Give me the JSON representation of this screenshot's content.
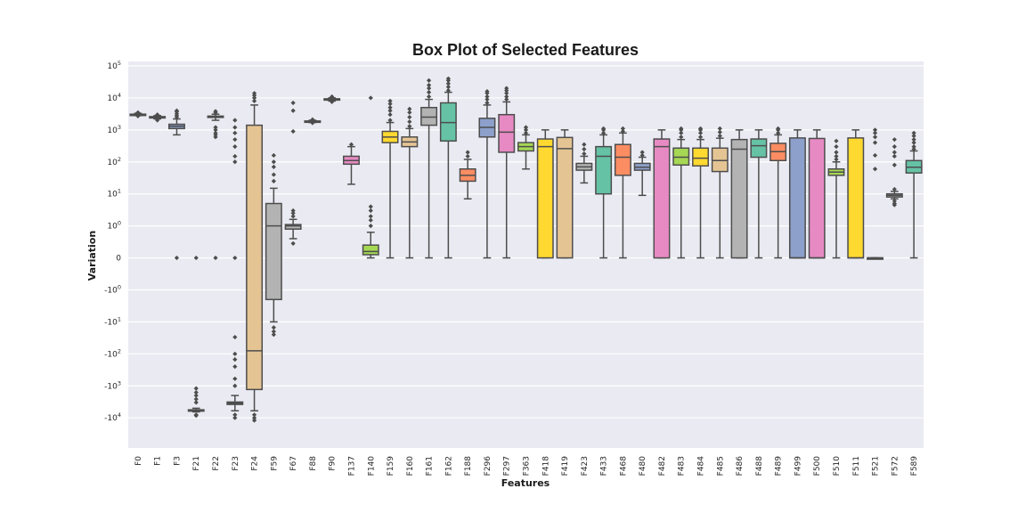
{
  "chart_data": {
    "type": "box",
    "title": "Box Plot of Selected Features",
    "xlabel": "Features",
    "ylabel": "Variation",
    "yscale": "symlog",
    "ylim": [
      -20000,
      100000
    ],
    "grid": true,
    "y_ticks": [
      {
        "value": 100000,
        "label": "10^5"
      },
      {
        "value": 10000,
        "label": "10^4"
      },
      {
        "value": 1000,
        "label": "10^3"
      },
      {
        "value": 100,
        "label": "10^2"
      },
      {
        "value": 10,
        "label": "10^1"
      },
      {
        "value": 1,
        "label": "10^0"
      },
      {
        "value": 0,
        "label": "0"
      },
      {
        "value": -1,
        "label": "-10^0"
      },
      {
        "value": -10,
        "label": "-10^1"
      },
      {
        "value": -100,
        "label": "-10^2"
      },
      {
        "value": -1000,
        "label": "-10^3"
      },
      {
        "value": -10000,
        "label": "-10^4"
      }
    ],
    "boxes": [
      {
        "name": "F0",
        "color": "#8c8c8c",
        "whislo": 2800,
        "q1": 2900,
        "med": 3000,
        "q3": 3100,
        "whishi": 3300,
        "outliers": [
          2700,
          3400,
          3500
        ]
      },
      {
        "name": "F1",
        "color": "#8c8c8c",
        "whislo": 2200,
        "q1": 2400,
        "med": 2500,
        "q3": 2600,
        "whishi": 2800,
        "outliers": [
          2000,
          3000
        ]
      },
      {
        "name": "F3",
        "color": "#8da0cb",
        "whislo": 700,
        "q1": 1100,
        "med": 1300,
        "q3": 1500,
        "whishi": 2200,
        "outliers": [
          0,
          2500,
          2800,
          3200,
          3700,
          4000
        ]
      },
      {
        "name": "F21",
        "color": "#8c8c8c",
        "whislo": -6500,
        "q1": -6000,
        "med": -5800,
        "q3": -5600,
        "whishi": -5000,
        "outliers": [
          0,
          -1200,
          -1600,
          -2000,
          -2600,
          -3300,
          -8000,
          -8500
        ]
      },
      {
        "name": "F22",
        "color": "#8c8c8c",
        "whislo": 2000,
        "q1": 2500,
        "med": 2600,
        "q3": 2700,
        "whishi": 3100,
        "outliers": [
          0,
          600,
          700,
          800,
          1000,
          1200,
          3500,
          3800
        ]
      },
      {
        "name": "F23",
        "color": "#8c8c8c",
        "whislo": -6000,
        "q1": -3800,
        "med": -3500,
        "q3": -3200,
        "whishi": -2000,
        "outliers": [
          0,
          100,
          150,
          300,
          500,
          800,
          1200,
          2000,
          -30,
          -100,
          -150,
          -250,
          -600,
          -1000,
          -8000,
          -10000
        ]
      },
      {
        "name": "F24",
        "color": "#e5c494",
        "whislo": -6000,
        "q1": -1300,
        "med": -80,
        "q3": 1400,
        "whishi": 6000,
        "outliers": [
          8000,
          10000,
          12000,
          14000,
          -8000,
          -10000,
          -12000
        ]
      },
      {
        "name": "F59",
        "color": "#b3b3b3",
        "whislo": -10,
        "q1": -2,
        "med": 1,
        "q3": 5,
        "whishi": 15,
        "outliers": [
          25,
          40,
          70,
          100,
          160,
          -15,
          -20,
          -25
        ]
      },
      {
        "name": "F67",
        "color": "#b3b3b3",
        "whislo": 0.6,
        "q1": 0.9,
        "med": 1,
        "q3": 1.1,
        "whishi": 1.6,
        "outliers": [
          0.45,
          2,
          2.5,
          3,
          900,
          4000,
          7000
        ]
      },
      {
        "name": "F88",
        "color": "#8c8c8c",
        "whislo": 1700,
        "q1": 1800,
        "med": 1850,
        "q3": 1900,
        "whishi": 2000,
        "outliers": [
          1650,
          2100
        ]
      },
      {
        "name": "F90",
        "color": "#8c8c8c",
        "whislo": 8000,
        "q1": 8600,
        "med": 9000,
        "q3": 9400,
        "whishi": 10000,
        "outliers": [
          7500,
          10500,
          11000
        ]
      },
      {
        "name": "F137",
        "color": "#e78ac3",
        "whislo": 20,
        "q1": 85,
        "med": 110,
        "q3": 150,
        "whishi": 300,
        "outliers": [
          350
        ]
      },
      {
        "name": "F140",
        "color": "#a6d854",
        "whislo": 0,
        "q1": 0.1,
        "med": 0.2,
        "q3": 0.4,
        "whishi": 0.8,
        "outliers": [
          1,
          1.5,
          2,
          3,
          4,
          10000
        ]
      },
      {
        "name": "F159",
        "color": "#ffd92f",
        "whislo": 0,
        "q1": 400,
        "med": 600,
        "q3": 900,
        "whishi": 1700,
        "outliers": [
          2000,
          3000,
          4000,
          5000,
          6500,
          8000
        ]
      },
      {
        "name": "F160",
        "color": "#e5c494",
        "whislo": 0,
        "q1": 300,
        "med": 420,
        "q3": 600,
        "whishi": 1100,
        "outliers": [
          1300,
          1800,
          2500,
          3500,
          4500
        ]
      },
      {
        "name": "F161",
        "color": "#b3b3b3",
        "whislo": 0,
        "q1": 1400,
        "med": 2500,
        "q3": 5000,
        "whishi": 9000,
        "outliers": [
          11000,
          15000,
          20000,
          25000,
          35000
        ]
      },
      {
        "name": "F162",
        "color": "#66c2a5",
        "whislo": 0,
        "q1": 450,
        "med": 1700,
        "q3": 7000,
        "whishi": 15000,
        "outliers": [
          17000,
          22000,
          28000,
          35000,
          40000
        ]
      },
      {
        "name": "F188",
        "color": "#fc8d62",
        "whislo": 7,
        "q1": 25,
        "med": 38,
        "q3": 60,
        "whishi": 120,
        "outliers": [
          150,
          200
        ]
      },
      {
        "name": "F296",
        "color": "#8da0cb",
        "whislo": 0,
        "q1": 600,
        "med": 1200,
        "q3": 2300,
        "whishi": 6000,
        "outliers": [
          7000,
          9000,
          11000,
          14000,
          16000
        ]
      },
      {
        "name": "F297",
        "color": "#e78ac3",
        "whislo": 0,
        "q1": 200,
        "med": 850,
        "q3": 3000,
        "whishi": 7500,
        "outliers": [
          9000,
          11000,
          14000,
          17000,
          20000
        ]
      },
      {
        "name": "F363",
        "color": "#a6d854",
        "whislo": 60,
        "q1": 220,
        "med": 300,
        "q3": 400,
        "whishi": 700,
        "outliers": [
          800,
          1000,
          1200
        ]
      },
      {
        "name": "F418",
        "color": "#ffd92f",
        "whislo": 0,
        "q1": 0,
        "med": 300,
        "q3": 520,
        "whishi": 1000,
        "outliers": []
      },
      {
        "name": "F419",
        "color": "#e5c494",
        "whislo": 0,
        "q1": 0,
        "med": 260,
        "q3": 580,
        "whishi": 1000,
        "outliers": []
      },
      {
        "name": "F423",
        "color": "#b3b3b3",
        "whislo": 22,
        "q1": 55,
        "med": 70,
        "q3": 90,
        "whishi": 150,
        "outliers": [
          180,
          250,
          350
        ]
      },
      {
        "name": "F433",
        "color": "#66c2a5",
        "whislo": 0,
        "q1": 10,
        "med": 150,
        "q3": 300,
        "whishi": 700,
        "outliers": [
          800,
          1000,
          1100
        ]
      },
      {
        "name": "F468",
        "color": "#fc8d62",
        "whislo": 0,
        "q1": 38,
        "med": 140,
        "q3": 350,
        "whishi": 800,
        "outliers": [
          900,
          1100
        ]
      },
      {
        "name": "F480",
        "color": "#8da0cb",
        "whislo": 9,
        "q1": 55,
        "med": 68,
        "q3": 90,
        "whishi": 140,
        "outliers": [
          160,
          200
        ]
      },
      {
        "name": "F482",
        "color": "#e78ac3",
        "whislo": 0,
        "q1": 0,
        "med": 300,
        "q3": 520,
        "whishi": 1000,
        "outliers": []
      },
      {
        "name": "F483",
        "color": "#a6d854",
        "whislo": 0,
        "q1": 80,
        "med": 140,
        "q3": 270,
        "whishi": 500,
        "outliers": [
          600,
          800,
          1000,
          1100
        ]
      },
      {
        "name": "F484",
        "color": "#ffd92f",
        "whislo": 0,
        "q1": 75,
        "med": 130,
        "q3": 270,
        "whishi": 500,
        "outliers": [
          600,
          800,
          1000,
          1100
        ]
      },
      {
        "name": "F485",
        "color": "#e5c494",
        "whislo": 0,
        "q1": 50,
        "med": 110,
        "q3": 270,
        "whishi": 550,
        "outliers": [
          650,
          850,
          1100
        ]
      },
      {
        "name": "F486",
        "color": "#b3b3b3",
        "whislo": 0,
        "q1": 0,
        "med": 250,
        "q3": 500,
        "whishi": 1000,
        "outliers": []
      },
      {
        "name": "F488",
        "color": "#66c2a5",
        "whislo": 0,
        "q1": 140,
        "med": 320,
        "q3": 520,
        "whishi": 1000,
        "outliers": []
      },
      {
        "name": "F489",
        "color": "#fc8d62",
        "whislo": 0,
        "q1": 110,
        "med": 210,
        "q3": 380,
        "whishi": 700,
        "outliers": [
          800,
          1000,
          1100
        ]
      },
      {
        "name": "F499",
        "color": "#8da0cb",
        "whislo": 0,
        "q1": 0,
        "med": 0,
        "q3": 560,
        "whishi": 1000,
        "outliers": []
      },
      {
        "name": "F500",
        "color": "#e78ac3",
        "whislo": 0,
        "q1": 0,
        "med": 0,
        "q3": 540,
        "whishi": 1000,
        "outliers": []
      },
      {
        "name": "F510",
        "color": "#a6d854",
        "whislo": 0,
        "q1": 38,
        "med": 48,
        "q3": 60,
        "whishi": 100,
        "outliers": [
          120,
          150,
          200,
          300,
          450
        ]
      },
      {
        "name": "F511",
        "color": "#ffd92f",
        "whislo": 0,
        "q1": 0,
        "med": 0,
        "q3": 560,
        "whishi": 1000,
        "outliers": []
      },
      {
        "name": "F521",
        "color": "#e5c494",
        "whislo": 0,
        "q1": 0,
        "med": 0,
        "q3": 0,
        "whishi": 0,
        "outliers": [
          60,
          160,
          400,
          600,
          800,
          1000
        ]
      },
      {
        "name": "F572",
        "color": "#b3b3b3",
        "whislo": 7,
        "q1": 8,
        "med": 9,
        "q3": 10,
        "whishi": 12,
        "outliers": [
          4.5,
          5,
          6,
          14,
          80,
          150,
          200,
          300,
          500
        ]
      },
      {
        "name": "F589",
        "color": "#66c2a5",
        "whislo": 0,
        "q1": 45,
        "med": 68,
        "q3": 110,
        "whishi": 220,
        "outliers": [
          250,
          300,
          400,
          500,
          650,
          800
        ]
      }
    ]
  }
}
